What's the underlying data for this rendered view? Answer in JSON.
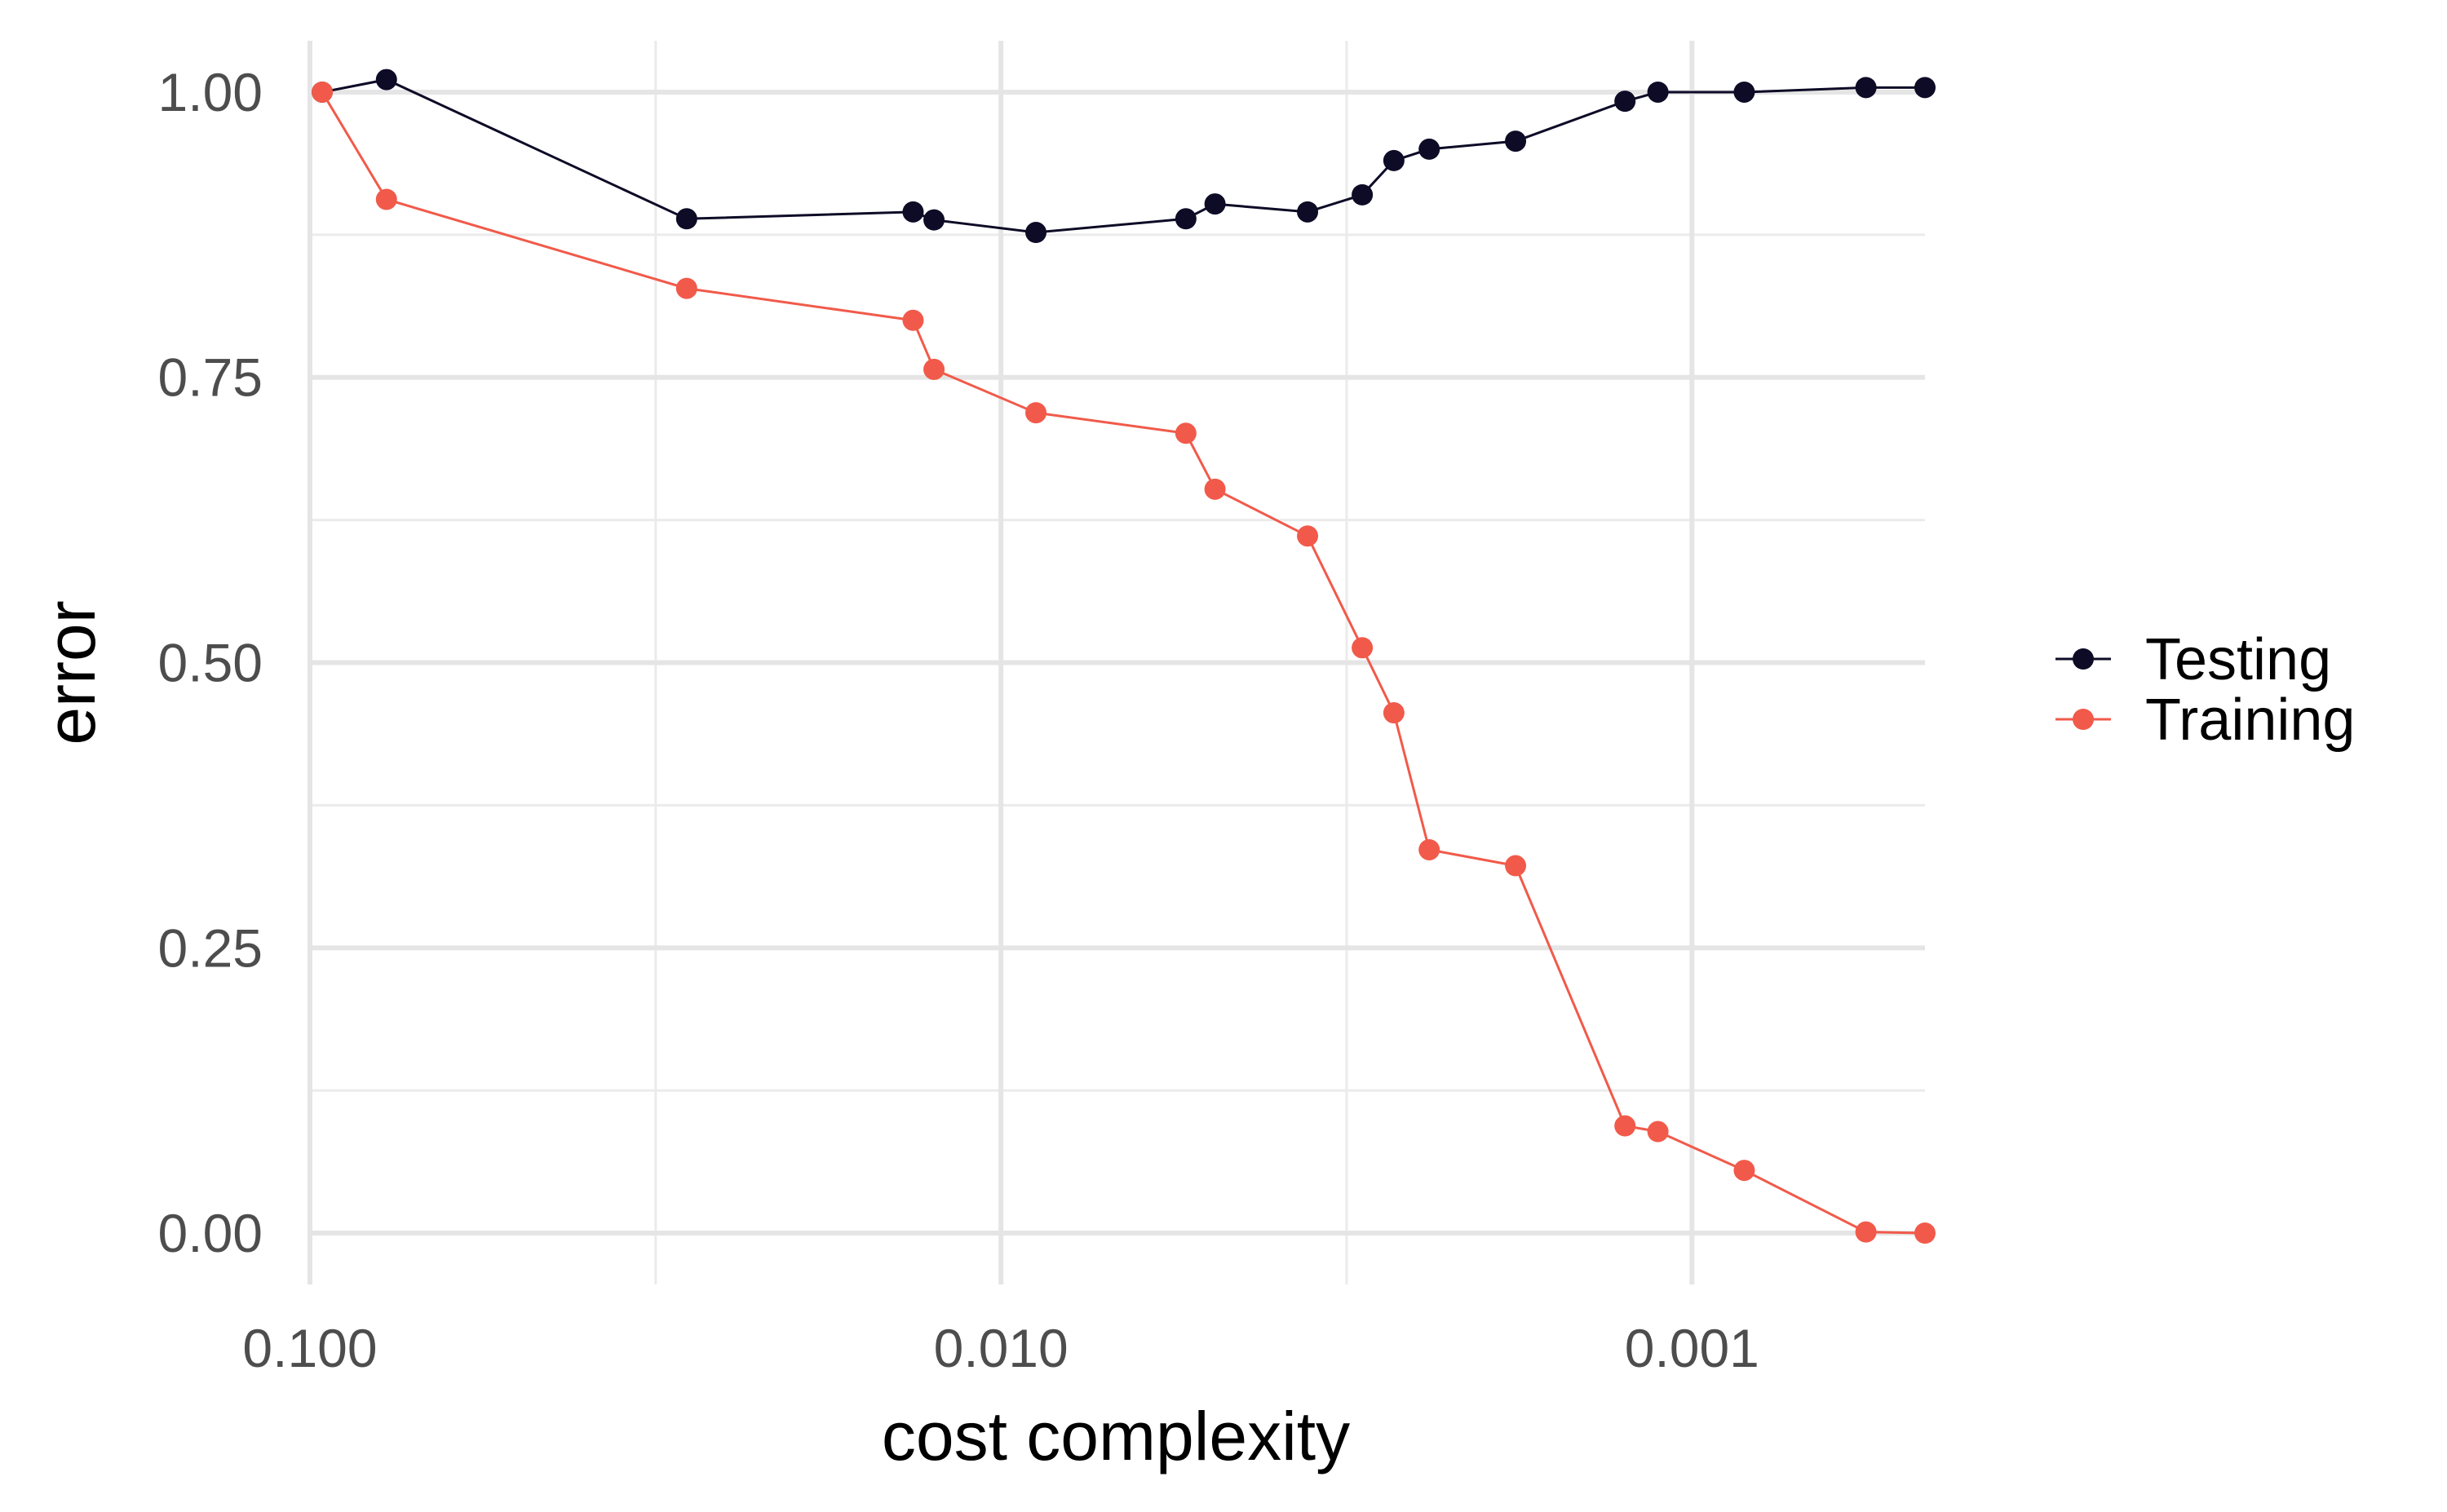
{
  "chart_data": {
    "type": "line",
    "xlabel": "cost complexity",
    "ylabel": "error",
    "x_scale": "log-reversed",
    "xlim": [
      0.1,
      0.00046
    ],
    "ylim": [
      -0.045,
      1.045
    ],
    "x_ticks": [
      {
        "value": 0.1,
        "label": "0.100"
      },
      {
        "value": 0.01,
        "label": "0.010"
      },
      {
        "value": 0.001,
        "label": "0.001"
      }
    ],
    "x_minor_ticks": [
      0.0316,
      0.00316
    ],
    "y_ticks": [
      {
        "value": 1.0,
        "label": "1.00"
      },
      {
        "value": 0.75,
        "label": "0.75"
      },
      {
        "value": 0.5,
        "label": "0.50"
      },
      {
        "value": 0.25,
        "label": "0.25"
      },
      {
        "value": 0.0,
        "label": "0.00"
      }
    ],
    "y_minor_ticks": [
      0.875,
      0.625,
      0.375,
      0.125
    ],
    "grid": true,
    "legend_position": "right",
    "series": [
      {
        "name": "Testing",
        "color": "#0d0b26",
        "points": [
          {
            "x": 0.096,
            "y": 1.0
          },
          {
            "x": 0.0775,
            "y": 1.011
          },
          {
            "x": 0.0285,
            "y": 0.889
          },
          {
            "x": 0.0134,
            "y": 0.895
          },
          {
            "x": 0.0125,
            "y": 0.888
          },
          {
            "x": 0.0089,
            "y": 0.877
          },
          {
            "x": 0.0054,
            "y": 0.889
          },
          {
            "x": 0.0049,
            "y": 0.902
          },
          {
            "x": 0.0036,
            "y": 0.895
          },
          {
            "x": 0.003,
            "y": 0.91
          },
          {
            "x": 0.0027,
            "y": 0.94
          },
          {
            "x": 0.0024,
            "y": 0.95
          },
          {
            "x": 0.0018,
            "y": 0.957
          },
          {
            "x": 0.00125,
            "y": 0.992
          },
          {
            "x": 0.00112,
            "y": 1.0
          },
          {
            "x": 0.00084,
            "y": 1.0
          },
          {
            "x": 0.00056,
            "y": 1.004
          },
          {
            "x": 0.00046,
            "y": 1.004
          }
        ]
      },
      {
        "name": "Training",
        "color": "#f15a4a",
        "points": [
          {
            "x": 0.096,
            "y": 1.0
          },
          {
            "x": 0.0775,
            "y": 0.906
          },
          {
            "x": 0.0285,
            "y": 0.828
          },
          {
            "x": 0.0134,
            "y": 0.8
          },
          {
            "x": 0.0125,
            "y": 0.757
          },
          {
            "x": 0.0089,
            "y": 0.719
          },
          {
            "x": 0.0054,
            "y": 0.701
          },
          {
            "x": 0.0049,
            "y": 0.652
          },
          {
            "x": 0.0036,
            "y": 0.611
          },
          {
            "x": 0.003,
            "y": 0.513
          },
          {
            "x": 0.0027,
            "y": 0.456
          },
          {
            "x": 0.0024,
            "y": 0.336
          },
          {
            "x": 0.0018,
            "y": 0.322
          },
          {
            "x": 0.00125,
            "y": 0.094
          },
          {
            "x": 0.00112,
            "y": 0.089
          },
          {
            "x": 0.00084,
            "y": 0.055
          },
          {
            "x": 0.00056,
            "y": 0.001
          },
          {
            "x": 0.00046,
            "y": 0.0
          }
        ]
      }
    ]
  }
}
